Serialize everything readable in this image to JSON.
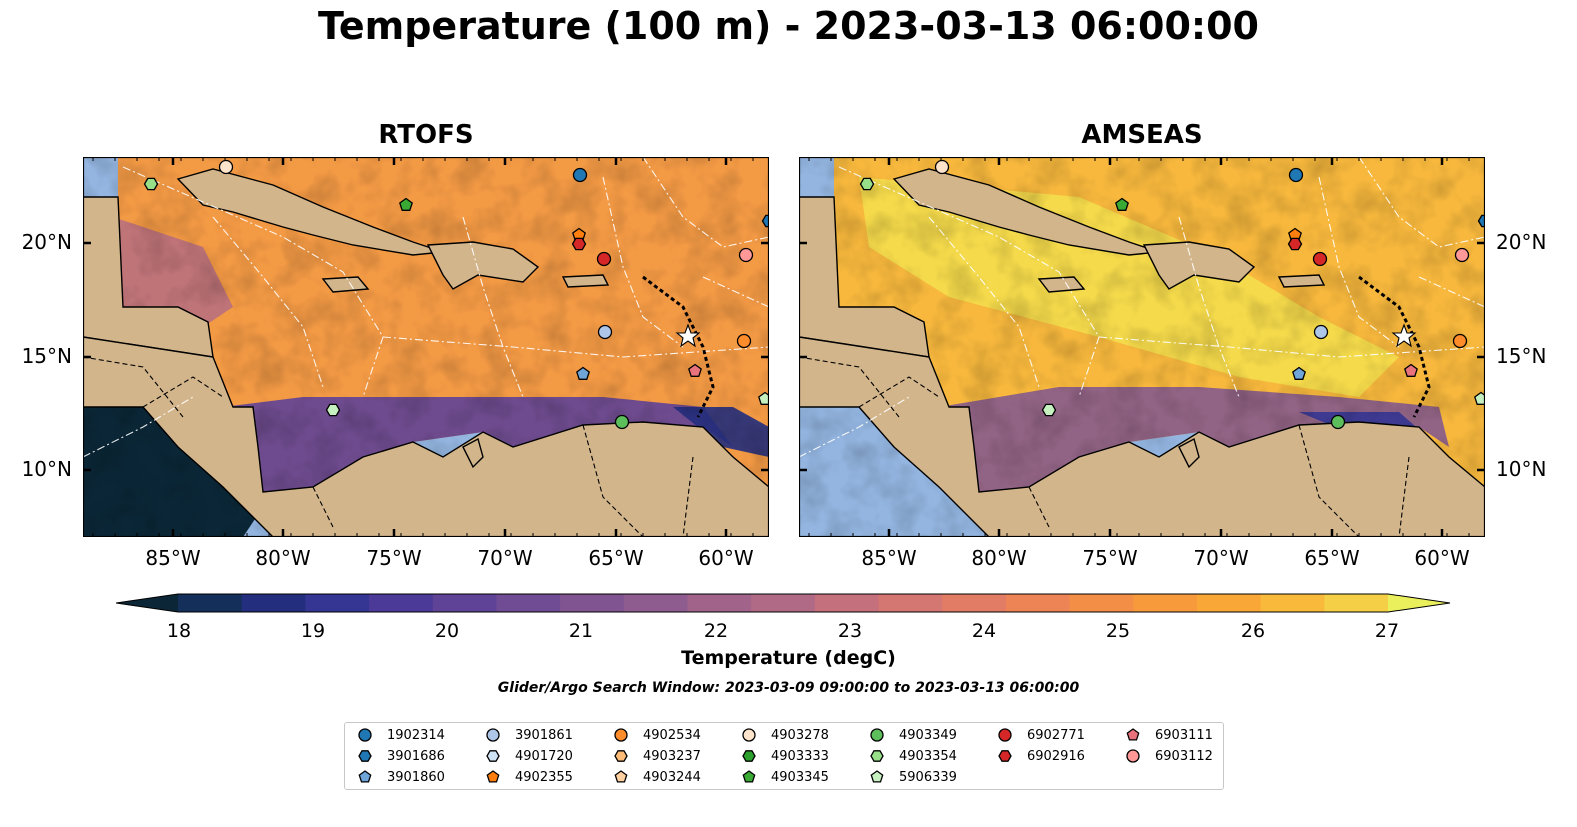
{
  "title": "Temperature (100 m) - 2023-03-13 06:00:00",
  "panels": [
    {
      "title": "RTOFS",
      "style": "rtofs"
    },
    {
      "title": "AMSEAS",
      "style": "amseas"
    }
  ],
  "axes": {
    "lon_labels": [
      "85°W",
      "80°W",
      "75°W",
      "70°W",
      "65°W",
      "60°W"
    ],
    "lat_labels": [
      "20°N",
      "15°N",
      "10°N"
    ]
  },
  "colorbar": {
    "ticks": [
      "18",
      "19",
      "20",
      "21",
      "22",
      "23",
      "24",
      "25",
      "26",
      "27"
    ],
    "label": "Temperature (degC)",
    "colors": [
      "#0b2737",
      "#14305a",
      "#232f7e",
      "#353593",
      "#4b3a97",
      "#5f4396",
      "#6f4c93",
      "#7f5491",
      "#8f5c8f",
      "#a1638a",
      "#b16a85",
      "#c4707d",
      "#d47671",
      "#e27c64",
      "#ec8455",
      "#f38e47",
      "#f79a3c",
      "#f9a837",
      "#f9ba3b",
      "#f5cf46",
      "#eaef5c"
    ]
  },
  "search_window": "Glider/Argo Search Window: 2023-03-09 09:00:00 to 2023-03-13 06:00:00",
  "legend": [
    {
      "label": "1902314",
      "color": "#1f77b4",
      "marker": "circle"
    },
    {
      "label": "3901686",
      "color": "#1f77b4",
      "marker": "hexagon"
    },
    {
      "label": "3901860",
      "color": "#6fa5d9",
      "marker": "pentagon"
    },
    {
      "label": "3901861",
      "color": "#aec7e8",
      "marker": "circle"
    },
    {
      "label": "4901720",
      "color": "#cfe3f5",
      "marker": "hexagon"
    },
    {
      "label": "4902355",
      "color": "#ff7f0e",
      "marker": "pentagon"
    },
    {
      "label": "4902534",
      "color": "#ff8c2a",
      "marker": "circle"
    },
    {
      "label": "4903237",
      "color": "#ffbb78",
      "marker": "hexagon"
    },
    {
      "label": "4903244",
      "color": "#ffd0a0",
      "marker": "pentagon"
    },
    {
      "label": "4903278",
      "color": "#ffe4cc",
      "marker": "circle"
    },
    {
      "label": "4903333",
      "color": "#2ca02c",
      "marker": "hexagon"
    },
    {
      "label": "4903345",
      "color": "#3aaa35",
      "marker": "pentagon"
    },
    {
      "label": "4903349",
      "color": "#5cbf5c",
      "marker": "circle"
    },
    {
      "label": "4903354",
      "color": "#98df8a",
      "marker": "hexagon"
    },
    {
      "label": "5906339",
      "color": "#c7f0c0",
      "marker": "pentagon"
    },
    {
      "label": "6902771",
      "color": "#d62728",
      "marker": "circle"
    },
    {
      "label": "6902916",
      "color": "#d62728",
      "marker": "hexagon"
    },
    {
      "label": "6903111",
      "color": "#e9737d",
      "marker": "pentagon"
    },
    {
      "label": "6903112",
      "color": "#ff9896",
      "marker": "circle"
    }
  ]
}
